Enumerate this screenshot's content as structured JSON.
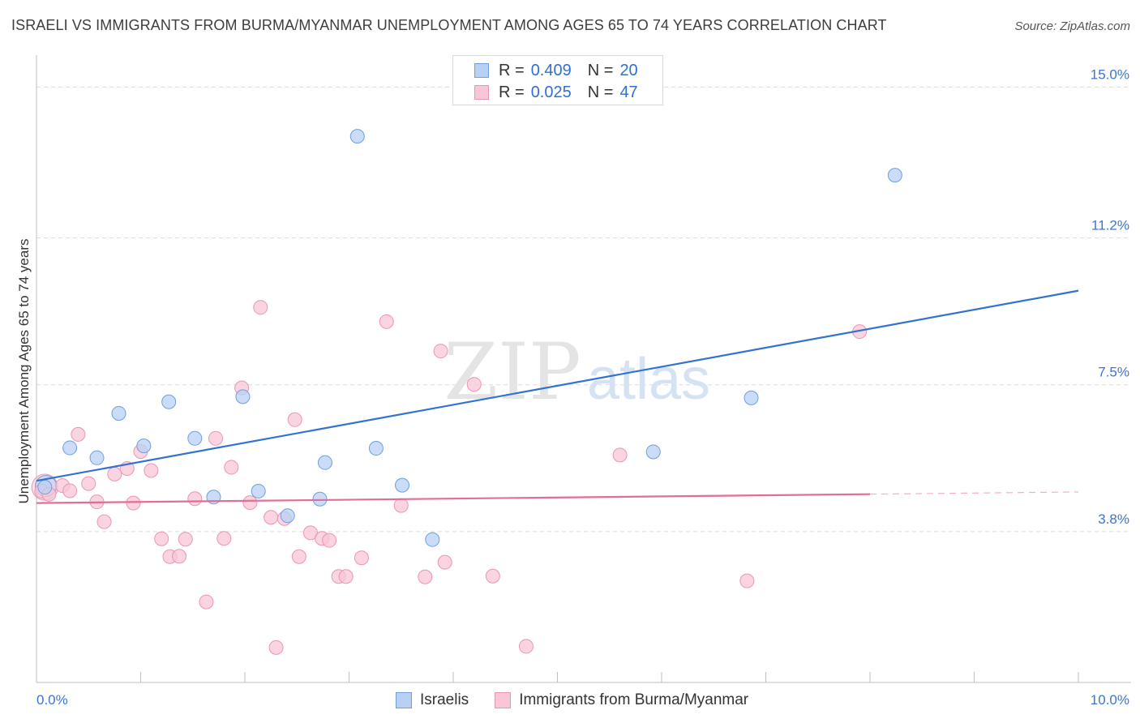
{
  "title": "ISRAELI VS IMMIGRANTS FROM BURMA/MYANMAR UNEMPLOYMENT AMONG AGES 65 TO 74 YEARS CORRELATION CHART",
  "source": "Source: ZipAtlas.com",
  "watermark": {
    "zip": "ZIP",
    "atlas": "atlas"
  },
  "legend_top": [
    {
      "r_label": "R =",
      "r_value": "0.409",
      "n_label": "N =",
      "n_value": "20"
    },
    {
      "r_label": "R =",
      "r_value": "0.025",
      "n_label": "N =",
      "n_value": "47"
    }
  ],
  "legend_bottom": {
    "israelis": "Israelis",
    "burma": "Immigrants from Burma/Myanmar"
  },
  "colors": {
    "blue_fill": "#b8d0f4",
    "blue_stroke": "#6f9fdc",
    "blue_line": "#3272d0",
    "pink_fill": "#f8c6d6",
    "pink_stroke": "#e996b2",
    "pink_line": "#e46d98",
    "tick_text": "#3d75cf",
    "grid": "#dcdcdc"
  },
  "chart_data": {
    "type": "scatter",
    "title": "ISRAELI VS IMMIGRANTS FROM BURMA/MYANMAR UNEMPLOYMENT AMONG AGES 65 TO 74 YEARS CORRELATION CHART",
    "xlabel": "",
    "ylabel": "Unemployment Among Ages 65 to 74 years",
    "xlim": [
      0,
      10
    ],
    "ylim": [
      0,
      15.6
    ],
    "x_tick_labels": [
      {
        "value": 0,
        "label": "0.0%"
      },
      {
        "value": 10,
        "label": "10.0%"
      }
    ],
    "y_ticks": [
      {
        "value": 3.8,
        "label": "3.8%"
      },
      {
        "value": 7.5,
        "label": "7.5%"
      },
      {
        "value": 11.2,
        "label": "11.2%"
      },
      {
        "value": 15.0,
        "label": "15.0%"
      }
    ],
    "x_minor_ticks": [
      1,
      2,
      3,
      4,
      5,
      6,
      7,
      8,
      9,
      10
    ],
    "series": [
      {
        "name": "Israelis",
        "r": 0.409,
        "n": 20,
        "points": [
          [
            0.08,
            4.92
          ],
          [
            0.32,
            5.91
          ],
          [
            0.58,
            5.66
          ],
          [
            0.79,
            6.78
          ],
          [
            1.03,
            5.96
          ],
          [
            1.27,
            7.07
          ],
          [
            1.52,
            6.15
          ],
          [
            1.7,
            4.67
          ],
          [
            1.98,
            7.2
          ],
          [
            2.13,
            4.82
          ],
          [
            2.41,
            4.2
          ],
          [
            2.72,
            4.62
          ],
          [
            2.77,
            5.54
          ],
          [
            3.08,
            13.76
          ],
          [
            3.26,
            5.9
          ],
          [
            3.51,
            4.97
          ],
          [
            3.8,
            3.6
          ],
          [
            5.92,
            5.81
          ],
          [
            6.86,
            7.17
          ],
          [
            8.24,
            12.78
          ]
        ],
        "trend": {
          "x0": 0.0,
          "y0": 5.08,
          "x1": 10.0,
          "y1": 9.87,
          "dashed_from": null
        }
      },
      {
        "name": "Immigrants from Burma/Myanmar",
        "r": 0.025,
        "n": 47,
        "points": [
          [
            0.05,
            4.82
          ],
          [
            0.12,
            4.74
          ],
          [
            0.25,
            4.96
          ],
          [
            0.32,
            4.83
          ],
          [
            0.4,
            6.25
          ],
          [
            0.5,
            5.01
          ],
          [
            0.58,
            4.55
          ],
          [
            0.65,
            4.05
          ],
          [
            0.75,
            5.25
          ],
          [
            0.87,
            5.39
          ],
          [
            0.93,
            4.52
          ],
          [
            1.0,
            5.82
          ],
          [
            1.1,
            5.34
          ],
          [
            1.2,
            3.62
          ],
          [
            1.28,
            3.17
          ],
          [
            1.37,
            3.18
          ],
          [
            1.43,
            3.61
          ],
          [
            1.52,
            4.63
          ],
          [
            1.63,
            2.03
          ],
          [
            1.72,
            6.15
          ],
          [
            1.8,
            3.63
          ],
          [
            1.87,
            5.42
          ],
          [
            1.97,
            7.42
          ],
          [
            2.05,
            4.53
          ],
          [
            2.15,
            9.45
          ],
          [
            2.25,
            4.16
          ],
          [
            2.3,
            0.88
          ],
          [
            2.38,
            4.13
          ],
          [
            2.48,
            6.62
          ],
          [
            2.52,
            3.17
          ],
          [
            2.63,
            3.77
          ],
          [
            2.74,
            3.63
          ],
          [
            2.81,
            3.58
          ],
          [
            2.9,
            2.67
          ],
          [
            2.97,
            2.67
          ],
          [
            3.12,
            3.14
          ],
          [
            3.36,
            9.09
          ],
          [
            3.5,
            4.46
          ],
          [
            3.73,
            2.66
          ],
          [
            3.88,
            8.35
          ],
          [
            3.92,
            3.03
          ],
          [
            4.2,
            7.51
          ],
          [
            4.38,
            2.68
          ],
          [
            4.7,
            0.91
          ],
          [
            5.6,
            5.73
          ],
          [
            6.82,
            2.56
          ],
          [
            7.9,
            8.84
          ]
        ],
        "trend": {
          "x0": 0.0,
          "y0": 4.52,
          "x1": 10.0,
          "y1": 4.8,
          "dashed_from": 8.0
        }
      }
    ]
  }
}
